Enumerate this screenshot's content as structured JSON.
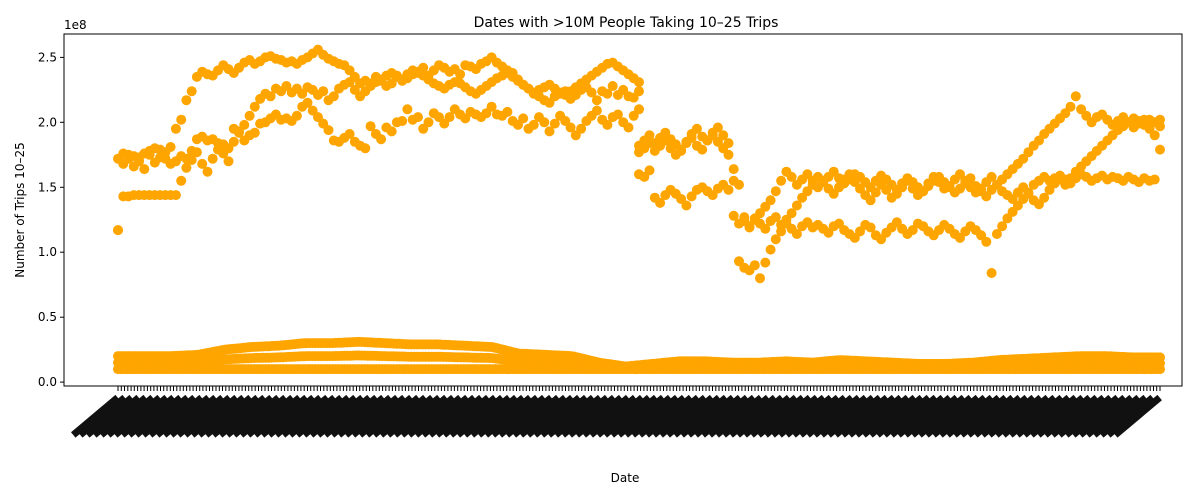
{
  "chart_data": {
    "type": "scatter",
    "title": "Dates with >10M People Taking 10–25 Trips",
    "xlabel": "Date",
    "ylabel": "Number of Trips 10–25",
    "offset_label": "1e8",
    "ylim": [
      -0.03,
      2.68
    ],
    "yticks": [
      0.0,
      0.5,
      1.0,
      1.5,
      2.0,
      2.5
    ],
    "ytick_labels": [
      "0.0",
      "0.5",
      "1.0",
      "1.5",
      "2.0",
      "2.5"
    ],
    "y_units": "1e8",
    "x_tick_labels_legible": false,
    "grid": false,
    "legend": "none",
    "marker_color": "#FFA500",
    "bands": [
      {
        "name": "",
        "x_start": 0.0,
        "x_end": 0.5,
        "values": [
          1.17,
          1.68,
          1.72,
          1.66,
          1.7,
          1.64,
          1.75,
          1.69,
          1.73,
          1.72,
          1.68,
          1.7,
          1.74,
          1.65,
          1.71,
          1.77,
          1.68,
          1.62,
          1.72,
          1.79,
          1.76,
          1.7,
          1.85,
          1.93,
          1.98,
          2.05,
          2.12,
          2.18,
          2.22,
          2.2,
          2.26,
          2.24,
          2.28,
          2.23,
          2.26,
          2.22,
          2.27,
          2.25,
          2.21,
          2.24,
          2.17,
          2.2,
          2.26,
          2.29,
          2.31,
          2.25,
          2.2,
          2.24,
          2.3,
          2.35,
          2.32,
          2.28,
          2.3,
          2.36,
          2.33,
          2.37,
          2.4,
          2.38,
          2.42,
          2.36,
          2.4,
          2.44,
          2.42,
          2.39,
          2.41,
          2.37,
          2.44,
          2.43,
          2.41,
          2.45,
          2.47,
          2.5,
          2.46,
          2.43,
          2.4,
          2.38,
          2.33,
          2.29,
          2.26,
          2.22,
          2.2,
          2.17,
          2.15,
          2.2,
          2.22,
          2.24,
          2.18,
          2.21,
          2.25,
          2.27,
          2.23,
          2.17,
          2.24,
          2.22,
          2.28,
          2.21,
          2.25,
          2.2,
          2.19,
          2.24
        ]
      },
      {
        "name": "",
        "x_start": 0.0,
        "x_end": 0.5,
        "values": [
          1.17,
          1.43,
          1.43,
          1.44,
          1.44,
          1.44,
          1.44,
          1.44,
          1.44,
          1.44,
          1.44,
          1.44,
          1.55,
          1.72,
          1.78,
          1.87,
          1.89,
          1.86,
          1.87,
          1.84,
          1.83,
          1.8,
          1.95,
          1.92,
          1.86,
          1.9,
          1.92,
          1.99,
          2.0,
          2.03,
          2.06,
          2.02,
          2.03,
          2.01,
          2.05,
          2.12,
          2.15,
          2.09,
          2.04,
          1.99,
          1.94,
          1.86,
          1.85,
          1.88,
          1.91,
          1.85,
          1.82,
          1.8,
          1.97,
          1.91,
          1.87,
          1.96,
          1.93,
          2.0,
          2.01,
          2.1,
          2.02,
          2.04,
          1.95,
          2.0,
          2.07,
          2.04,
          1.99,
          2.04,
          2.1,
          2.06,
          2.03,
          2.08,
          2.06,
          2.04,
          2.07,
          2.12,
          2.06,
          2.05,
          2.08,
          2.01,
          1.98,
          2.03,
          1.95,
          1.98,
          2.04,
          2.0,
          1.93,
          1.99,
          2.05,
          2.01,
          1.96,
          1.9,
          1.95,
          2.01,
          2.05,
          2.09,
          2.02,
          1.98,
          2.04,
          2.06,
          2.0,
          1.96,
          2.05,
          2.1
        ]
      },
      {
        "name": "",
        "x_start": 0.0,
        "x_end": 0.5,
        "values": [
          1.72,
          1.76,
          1.75,
          1.74,
          1.73,
          1.76,
          1.78,
          1.8,
          1.79,
          1.77,
          1.81,
          1.95,
          2.02,
          2.17,
          2.24,
          2.35,
          2.39,
          2.37,
          2.36,
          2.4,
          2.44,
          2.41,
          2.38,
          2.42,
          2.46,
          2.48,
          2.45,
          2.47,
          2.5,
          2.51,
          2.49,
          2.48,
          2.46,
          2.47,
          2.45,
          2.48,
          2.5,
          2.53,
          2.56,
          2.52,
          2.49,
          2.47,
          2.45,
          2.44,
          2.4,
          2.35,
          2.3,
          2.32,
          2.28,
          2.31,
          2.33,
          2.36,
          2.38,
          2.35,
          2.32,
          2.34,
          2.37,
          2.39,
          2.36,
          2.33,
          2.3,
          2.28,
          2.26,
          2.29,
          2.31,
          2.3,
          2.27,
          2.24,
          2.22,
          2.25,
          2.28,
          2.31,
          2.34,
          2.36,
          2.38,
          2.35,
          2.32,
          2.29,
          2.26,
          2.23,
          2.25,
          2.27,
          2.29,
          2.26,
          2.23,
          2.21,
          2.24,
          2.27,
          2.3,
          2.33,
          2.36,
          2.39,
          2.42,
          2.45,
          2.46,
          2.43,
          2.4,
          2.37,
          2.34,
          2.31
        ]
      },
      {
        "name": "",
        "x_start": 0.5,
        "x_end": 1.0,
        "values": [
          1.77,
          1.8,
          1.84,
          1.78,
          1.82,
          1.86,
          1.8,
          1.75,
          1.78,
          1.84,
          1.88,
          1.82,
          1.79,
          1.86,
          1.9,
          1.85,
          1.8,
          1.75,
          1.64,
          1.52,
          1.24,
          1.2,
          1.26,
          1.22,
          1.18,
          1.24,
          1.27,
          1.21,
          1.25,
          1.3,
          1.36,
          1.42,
          1.47,
          1.52,
          1.58,
          1.55,
          1.49,
          1.45,
          1.5,
          1.56,
          1.6,
          1.54,
          1.49,
          1.44,
          1.4,
          1.46,
          1.52,
          1.48,
          1.42,
          1.45,
          1.5,
          1.55,
          1.49,
          1.44,
          1.47,
          1.53,
          1.58,
          1.54,
          1.49,
          1.51,
          1.56,
          1.6,
          1.55,
          1.5,
          1.46,
          1.49,
          1.54,
          1.58,
          1.52,
          1.47,
          1.44,
          1.41,
          1.46,
          1.5,
          1.45,
          1.4,
          1.37,
          1.42,
          1.48,
          1.53,
          1.56,
          1.52,
          1.57,
          1.62,
          1.66,
          1.7,
          1.74,
          1.78,
          1.82,
          1.86,
          1.9,
          1.94,
          1.97,
          2.0,
          2.03,
          2.01,
          1.98,
          2.02,
          2.0,
          1.97
        ]
      },
      {
        "name": "",
        "x_start": 0.5,
        "x_end": 1.0,
        "values": [
          1.6,
          1.58,
          1.63,
          1.42,
          1.38,
          1.44,
          1.48,
          1.45,
          1.41,
          1.36,
          1.43,
          1.48,
          1.5,
          1.47,
          1.44,
          1.49,
          1.52,
          1.48,
          1.55,
          0.93,
          0.88,
          0.86,
          0.9,
          0.8,
          0.92,
          1.02,
          1.1,
          1.16,
          1.22,
          1.18,
          1.14,
          1.2,
          1.23,
          1.19,
          1.21,
          1.18,
          1.15,
          1.2,
          1.22,
          1.17,
          1.14,
          1.11,
          1.16,
          1.21,
          1.19,
          1.13,
          1.1,
          1.15,
          1.19,
          1.23,
          1.18,
          1.14,
          1.17,
          1.22,
          1.2,
          1.16,
          1.13,
          1.17,
          1.21,
          1.18,
          1.14,
          1.11,
          1.16,
          1.2,
          1.17,
          1.13,
          1.08,
          0.84,
          1.14,
          1.2,
          1.26,
          1.31,
          1.36,
          1.41,
          1.46,
          1.52,
          1.55,
          1.58,
          1.55,
          1.57,
          1.59,
          1.56,
          1.53,
          1.57,
          1.6,
          1.58,
          1.55,
          1.57,
          1.59,
          1.56,
          1.58,
          1.57,
          1.55,
          1.58,
          1.56,
          1.54,
          1.57,
          1.55,
          1.56,
          1.79
        ]
      },
      {
        "name": "",
        "x_start": 0.5,
        "x_end": 1.0,
        "values": [
          1.82,
          1.86,
          1.9,
          1.84,
          1.88,
          1.92,
          1.87,
          1.83,
          1.79,
          1.85,
          1.91,
          1.95,
          1.89,
          1.86,
          1.92,
          1.96,
          1.9,
          1.84,
          1.28,
          1.22,
          1.27,
          1.19,
          1.25,
          1.3,
          1.35,
          1.4,
          1.47,
          1.55,
          1.62,
          1.58,
          1.52,
          1.56,
          1.6,
          1.55,
          1.5,
          1.54,
          1.58,
          1.62,
          1.57,
          1.53,
          1.56,
          1.6,
          1.58,
          1.54,
          1.5,
          1.55,
          1.59,
          1.56,
          1.52,
          1.48,
          1.53,
          1.57,
          1.54,
          1.5,
          1.47,
          1.51,
          1.55,
          1.58,
          1.54,
          1.5,
          1.46,
          1.49,
          1.53,
          1.57,
          1.51,
          1.47,
          1.43,
          1.48,
          1.52,
          1.56,
          1.6,
          1.64,
          1.68,
          1.72,
          1.77,
          1.82,
          1.86,
          1.91,
          1.95,
          1.99,
          2.03,
          2.07,
          2.12,
          2.2,
          2.1,
          2.05,
          2.0,
          2.04,
          2.06,
          2.02,
          1.98,
          2.01,
          2.04,
          2.0,
          1.96,
          1.99,
          2.02,
          1.95,
          1.9,
          2.02
        ]
      }
    ],
    "low_band": {
      "x_start": 0.0,
      "x_end": 1.0,
      "floor": 0.1,
      "ceiling_profile": [
        0.2,
        0.2,
        0.2,
        0.21,
        0.25,
        0.27,
        0.28,
        0.3,
        0.3,
        0.31,
        0.3,
        0.29,
        0.29,
        0.28,
        0.27,
        0.22,
        0.21,
        0.2,
        0.15,
        0.12,
        0.14,
        0.16,
        0.16,
        0.15,
        0.15,
        0.16,
        0.15,
        0.17,
        0.16,
        0.15,
        0.14,
        0.14,
        0.15,
        0.17,
        0.18,
        0.19,
        0.2,
        0.2,
        0.19,
        0.19
      ]
    }
  }
}
